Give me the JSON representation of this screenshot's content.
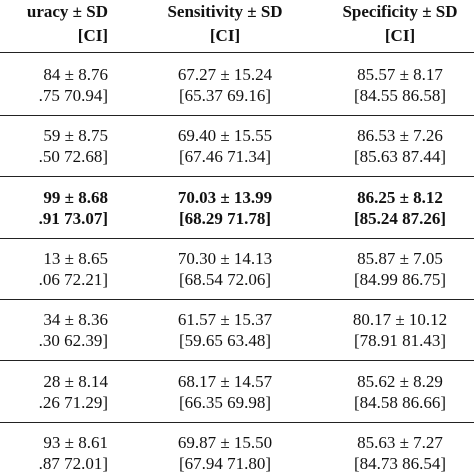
{
  "table": {
    "header": [
      {
        "title": "uracy ± SD",
        "ci": "[CI]"
      },
      {
        "title": "Sensitivity ± SD",
        "ci": "[CI]"
      },
      {
        "title": "Specificity ± SD",
        "ci": "[CI]"
      }
    ],
    "highlight_row": 2,
    "rows": [
      [
        {
          "value": "84 ± 8.76",
          "ci": ".75 70.94]"
        },
        {
          "value": "67.27 ± 15.24",
          "ci": "[65.37 69.16]"
        },
        {
          "value": "85.57 ± 8.17",
          "ci": "[84.55 86.58]"
        }
      ],
      [
        {
          "value": "59 ± 8.75",
          "ci": ".50 72.68]"
        },
        {
          "value": "69.40 ± 15.55",
          "ci": "[67.46 71.34]"
        },
        {
          "value": "86.53 ± 7.26",
          "ci": "[85.63 87.44]"
        }
      ],
      [
        {
          "value": "99 ± 8.68",
          "ci": ".91 73.07]"
        },
        {
          "value": "70.03 ± 13.99",
          "ci": "[68.29 71.78]"
        },
        {
          "value": "86.25 ± 8.12",
          "ci": "[85.24 87.26]"
        }
      ],
      [
        {
          "value": "13 ± 8.65",
          "ci": ".06 72.21]"
        },
        {
          "value": "70.30 ± 14.13",
          "ci": "[68.54 72.06]"
        },
        {
          "value": "85.87 ± 7.05",
          "ci": "[84.99 86.75]"
        }
      ],
      [
        {
          "value": "34 ± 8.36",
          "ci": ".30 62.39]"
        },
        {
          "value": "61.57 ± 15.37",
          "ci": "[59.65 63.48]"
        },
        {
          "value": "80.17 ± 10.12",
          "ci": "[78.91 81.43]"
        }
      ],
      [
        {
          "value": "28 ± 8.14",
          "ci": ".26 71.29]"
        },
        {
          "value": "68.17 ± 14.57",
          "ci": "[66.35 69.98]"
        },
        {
          "value": "85.62 ± 8.29",
          "ci": "[84.58 86.66]"
        }
      ],
      [
        {
          "value": "93 ± 8.61",
          "ci": ".87 72.01]"
        },
        {
          "value": "69.87 ± 15.50",
          "ci": "[67.94 71.80]"
        },
        {
          "value": "85.63 ± 7.27",
          "ci": "[84.73 86.54]"
        }
      ]
    ]
  }
}
